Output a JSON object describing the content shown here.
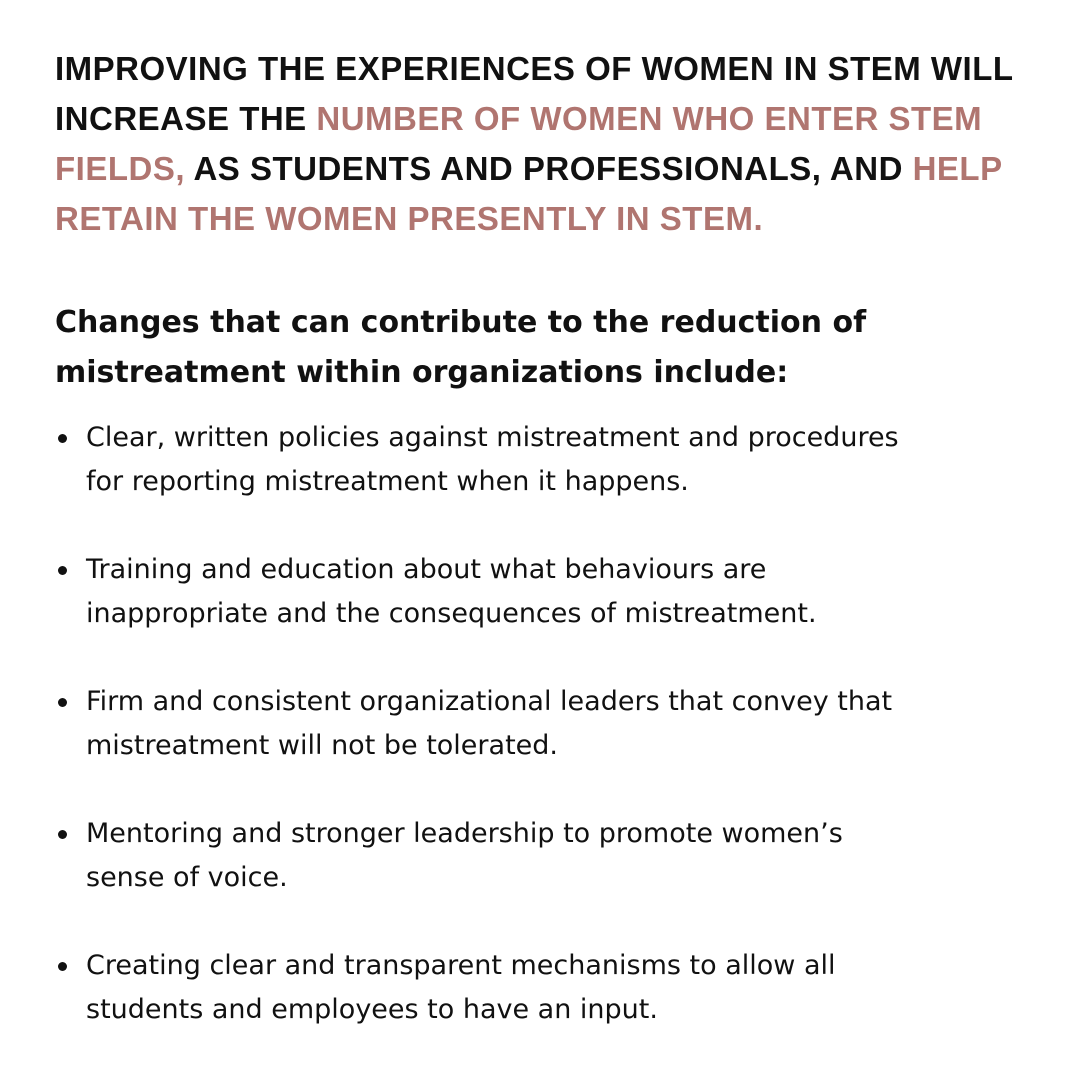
{
  "headline": {
    "part1": "Improving the experiences of women in STEM will increase the ",
    "highlight1": "number of women who enter STEM fields,",
    "part2": " as students and professionals, and ",
    "highlight2": "help retain the women presently in STEM.",
    "accent_color": "#b07570"
  },
  "subheading": "Changes that can contribute to the reduction of mistreatment within organizations include:",
  "bullets": [
    {
      "line1": "Clear, written policies against mistreatment and procedures",
      "line2": "for reporting mistreatment when it happens."
    },
    {
      "line1": "Training and education about what behaviours are",
      "line2": "inappropriate and the consequences of mistreatment."
    },
    {
      "line1": "Firm and consistent organizational leaders that convey that",
      "line2": "mistreatment will not be tolerated."
    },
    {
      "line1": "Mentoring and stronger leadership to promote women’s",
      "line2": "sense of voice."
    },
    {
      "line1": "Creating clear and transparent mechanisms to allow all",
      "line2": "students and employees to have an input."
    }
  ]
}
